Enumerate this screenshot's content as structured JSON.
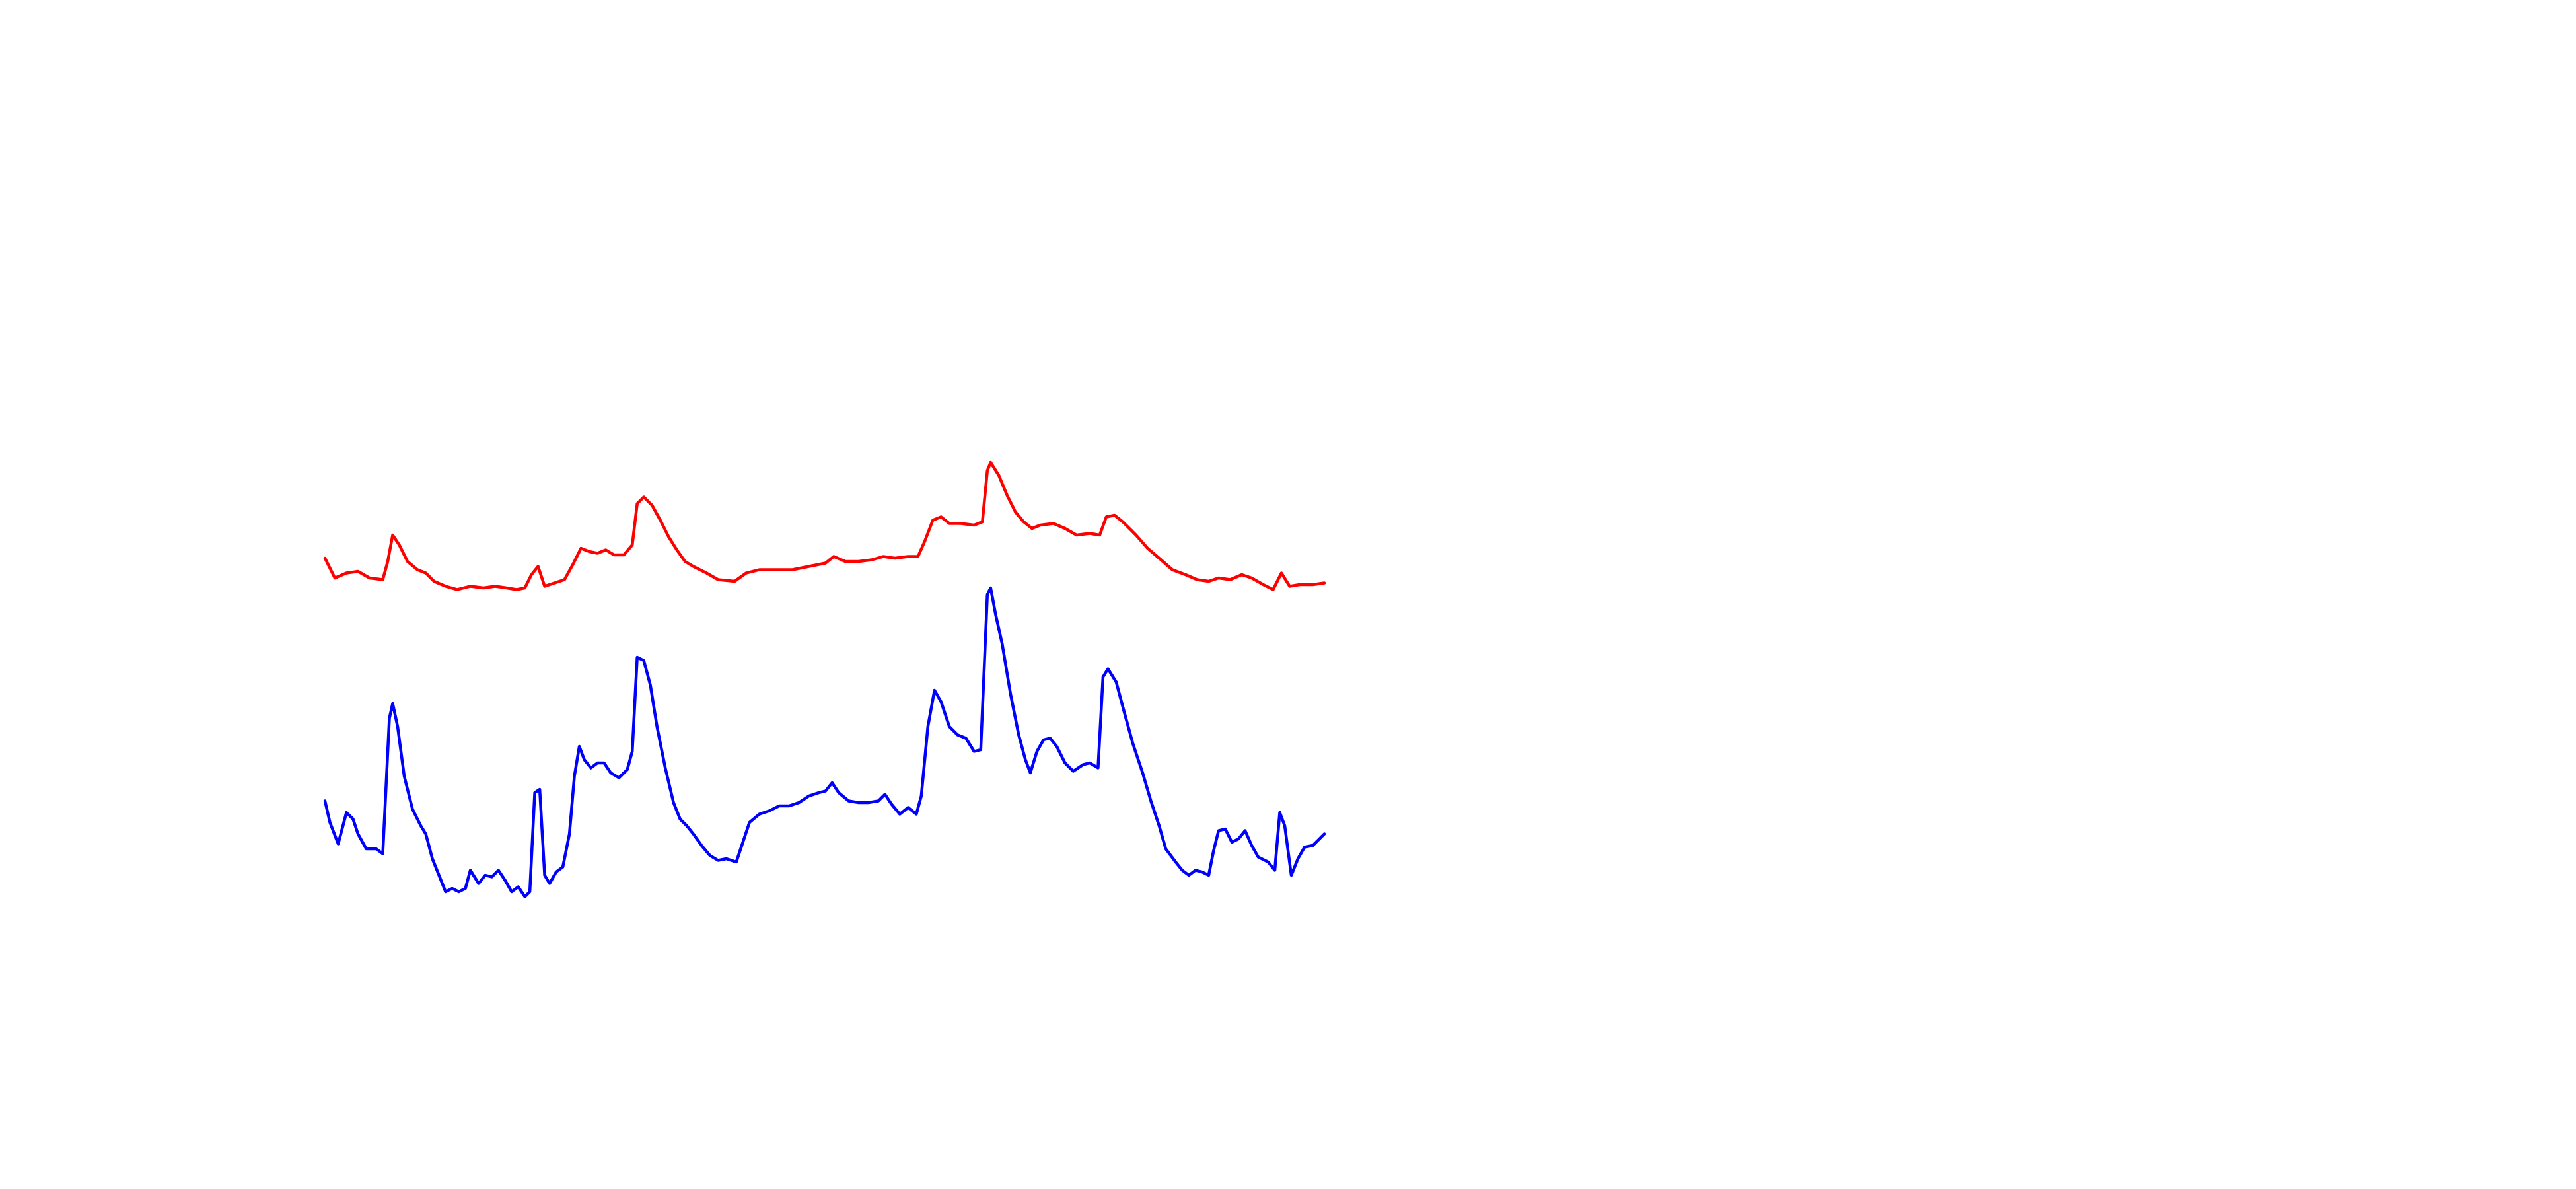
{
  "chart_data": {
    "type": "line",
    "xlim": [
      0,
      605
    ],
    "ylim": [
      0,
      300
    ],
    "series": [
      {
        "color": "#ff0000",
        "x": [
          0,
          6,
          13,
          20,
          27,
          35,
          38,
          41,
          45,
          50,
          56,
          61,
          66,
          73,
          80,
          88,
          96,
          103,
          110,
          116,
          121,
          125,
          129,
          133,
          139,
          145,
          150,
          155,
          160,
          165,
          170,
          175,
          181,
          186,
          189,
          193,
          198,
          203,
          208,
          213,
          218,
          223,
          231,
          238,
          248,
          255,
          263,
          273,
          283,
          293,
          303,
          308,
          315,
          323,
          331,
          338,
          345,
          353,
          359,
          363,
          368,
          373,
          378,
          385,
          393,
          398,
          401,
          403,
          408,
          413,
          418,
          423,
          428,
          433,
          441,
          448,
          455,
          463,
          469,
          473,
          478,
          483,
          491,
          498,
          505,
          513,
          521,
          528,
          535,
          541,
          548,
          555,
          561,
          568,
          574,
          579,
          584,
          590,
          598,
          605
        ],
        "values": [
          222,
          210,
          213,
          214,
          210,
          209,
          220,
          236,
          230,
          220,
          215,
          213,
          208,
          205,
          203,
          205,
          204,
          205,
          204,
          203,
          204,
          212,
          217,
          205,
          207,
          209,
          218,
          228,
          226,
          225,
          227,
          224,
          224,
          230,
          255,
          259,
          254,
          245,
          235,
          227,
          220,
          217,
          213,
          209,
          208,
          213,
          215,
          215,
          215,
          217,
          219,
          223,
          220,
          220,
          221,
          223,
          222,
          223,
          223,
          232,
          245,
          247,
          243,
          243,
          242,
          244,
          275,
          280,
          272,
          260,
          250,
          244,
          240,
          242,
          243,
          240,
          236,
          237,
          236,
          247,
          248,
          244,
          236,
          228,
          222,
          215,
          212,
          209,
          208,
          210,
          209,
          212,
          210,
          206,
          203,
          213,
          205,
          206,
          206,
          207
        ]
      },
      {
        "color": "#0000ff",
        "x": [
          0,
          3,
          8,
          13,
          17,
          20,
          25,
          31,
          35,
          39,
          41,
          44,
          48,
          53,
          58,
          61,
          65,
          69,
          73,
          77,
          81,
          85,
          88,
          93,
          97,
          101,
          105,
          109,
          113,
          117,
          121,
          124,
          127,
          130,
          133,
          136,
          140,
          144,
          148,
          151,
          154,
          157,
          161,
          165,
          169,
          173,
          178,
          183,
          186,
          189,
          193,
          197,
          201,
          206,
          211,
          215,
          219,
          223,
          228,
          233,
          238,
          243,
          249,
          253,
          257,
          263,
          269,
          275,
          281,
          287,
          293,
          299,
          303,
          307,
          311,
          317,
          323,
          329,
          335,
          339,
          343,
          348,
          353,
          358,
          361,
          365,
          369,
          373,
          378,
          383,
          388,
          393,
          397,
          401,
          403,
          406,
          410,
          415,
          420,
          424,
          427,
          431,
          435,
          439,
          443,
          448,
          453,
          459,
          463,
          468,
          471,
          474,
          479,
          483,
          489,
          495,
          500,
          505,
          509,
          515,
          519,
          523,
          527,
          531,
          535,
          538,
          541,
          545,
          549,
          553,
          557,
          561,
          565,
          571,
          575,
          578,
          581,
          585,
          589,
          593,
          598,
          605
        ],
        "values": [
          75,
          62,
          49,
          68,
          64,
          55,
          46,
          46,
          43,
          125,
          134,
          120,
          90,
          70,
          60,
          55,
          40,
          30,
          20,
          22,
          20,
          22,
          33,
          25,
          30,
          29,
          33,
          27,
          20,
          23,
          17,
          20,
          80,
          82,
          30,
          25,
          32,
          35,
          55,
          90,
          108,
          100,
          95,
          98,
          98,
          92,
          89,
          94,
          105,
          162,
          160,
          145,
          120,
          95,
          74,
          64,
          60,
          55,
          48,
          42,
          39,
          40,
          38,
          50,
          62,
          67,
          69,
          72,
          72,
          74,
          78,
          80,
          81,
          86,
          80,
          75,
          74,
          74,
          75,
          79,
          73,
          67,
          71,
          67,
          78,
          120,
          142,
          135,
          120,
          115,
          113,
          105,
          106,
          200,
          204,
          188,
          170,
          140,
          115,
          100,
          92,
          105,
          112,
          113,
          108,
          98,
          93,
          97,
          98,
          95,
          150,
          155,
          147,
          132,
          110,
          92,
          75,
          60,
          46,
          38,
          33,
          30,
          33,
          32,
          30,
          45,
          57,
          58,
          50,
          52,
          57,
          48,
          41,
          38,
          33,
          68,
          60,
          30,
          40,
          47,
          48,
          55
        ]
      }
    ]
  }
}
